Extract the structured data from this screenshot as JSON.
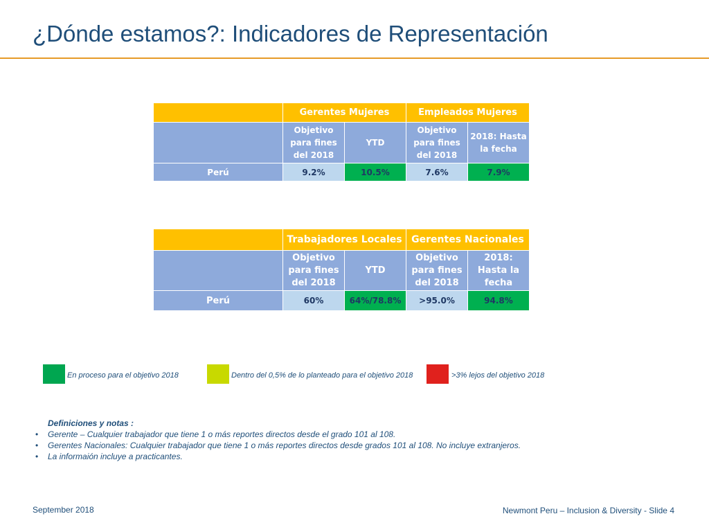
{
  "slide": {
    "title": "¿Dónde estamos?: Indicadores de Representación"
  },
  "table1": {
    "header_left": "Gerentes Mujeres",
    "header_right": "Empleados Mujeres",
    "sub_col1": "Objetivo para fines del 2018",
    "sub_col2": "YTD",
    "sub_col3": "Objetivo para fines del 2018",
    "sub_col4": "2018: Hasta la fecha",
    "row_label": "Perú",
    "values": [
      "9.2%",
      "10.5%",
      "7.6%",
      "7.9%"
    ]
  },
  "table2": {
    "header_left": "Trabajadores Locales",
    "header_right": "Gerentes Nacionales",
    "sub_col1": "Objetivo para fines del 2018",
    "sub_col2": "YTD",
    "sub_col3": "Objetivo para fines del 2018",
    "sub_col4": "2018: Hasta la fecha",
    "row_label": "Perú",
    "values": [
      "60%",
      "64%/78.8%",
      ">95.0%",
      "94.8%"
    ]
  },
  "legend": [
    {
      "label": "En proceso para el objetivo 2018",
      "color": "#00a650"
    },
    {
      "label": "Dentro del 0,5% de lo planteado para el objetivo 2018",
      "color": "#c8d900"
    },
    {
      "label": ">3% lejos del objetivo 2018",
      "color": "#e0211d"
    }
  ],
  "notes": {
    "title": "Definiciones y notas :",
    "bullet": "•",
    "items": [
      "Gerente –  Cualquier trabajador que tiene 1 o más reportes directos desde el grado 101 al 108.",
      "Gerentes Nacionales: Cualquier trabajador que tiene 1 o más reportes directos desde grados 101 al 108. No incluye extranjeros.",
      "La informaión incluye a practicantes."
    ]
  },
  "footer": {
    "left": "September 2018",
    "right": "Newmont Peru – Inclusion & Diversity - Slide 4"
  },
  "colors": {
    "title": "#1f4e79",
    "rule": "#e69a28",
    "table_header": "#ffc000",
    "table_sub": "#8eaadb",
    "table_value": "#bdd7ee",
    "table_green": "#00b050"
  }
}
